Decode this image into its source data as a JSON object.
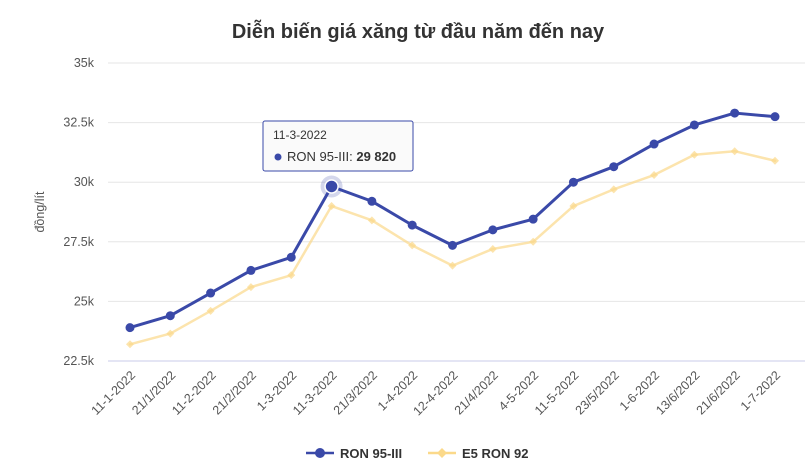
{
  "chart_data": {
    "type": "line",
    "title": "Diễn biến giá xăng từ đầu năm đến nay",
    "xlabel": "",
    "ylabel": "đồng/lít",
    "categories": [
      "11-1-2022",
      "21/1/2022",
      "11-2-2022",
      "21/2/2022",
      "1-3-2022",
      "11-3-2022",
      "21/3/2022",
      "1-4-2022",
      "12-4-2022",
      "21/4/2022",
      "4-5-2022",
      "11-5-2022",
      "23/5/2022",
      "1-6-2022",
      "13/6/2022",
      "21/6/2022",
      "1-7-2022"
    ],
    "ylim": [
      22500,
      35000
    ],
    "yticks": [
      22500,
      25000,
      27500,
      30000,
      32500,
      35000
    ],
    "ytick_labels": [
      "22.5k",
      "25k",
      "27.5k",
      "30k",
      "32.5k",
      "35k"
    ],
    "grid": true,
    "legend_position": "bottom",
    "series": [
      {
        "name": "RON 95-III",
        "color": "#3a49a8",
        "values": [
          23900,
          24400,
          25350,
          26300,
          26850,
          29820,
          29200,
          28200,
          27350,
          28000,
          28450,
          30000,
          30650,
          31600,
          32400,
          32900,
          32750
        ]
      },
      {
        "name": "E5 RON 92",
        "color": "#fbd98a",
        "values": [
          23200,
          23650,
          24600,
          25600,
          26100,
          29000,
          28400,
          27350,
          26500,
          27200,
          27500,
          29000,
          29700,
          30300,
          31150,
          31300,
          30900
        ]
      }
    ],
    "tooltip": {
      "date": "11-3-2022",
      "series": "RON 95-III",
      "value": "29 820",
      "index": 5
    }
  }
}
